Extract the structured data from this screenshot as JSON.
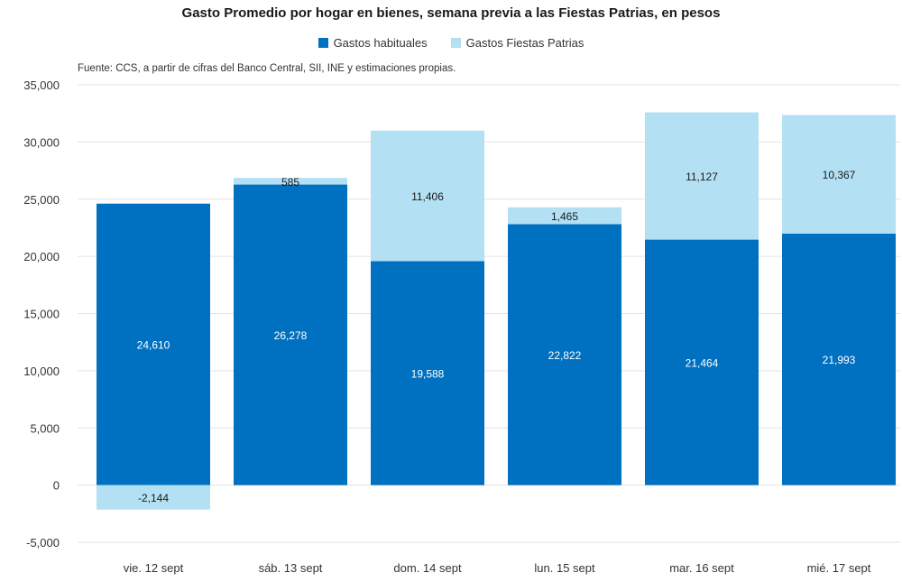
{
  "chart_data": {
    "type": "bar",
    "stacked": true,
    "title": "Gasto Promedio por hogar en bienes, semana previa a las Fiestas Patrias, en pesos",
    "source": "Fuente: CCS, a partir de cifras del Banco Central, SII, INE y estimaciones propias.",
    "categories": [
      "vie. 12 sept",
      "sáb. 13 sept",
      "dom. 14 sept",
      "lun. 15 sept",
      "mar. 16 sept",
      "mié. 17 sept"
    ],
    "series": [
      {
        "name": "Gastos habituales",
        "values": [
          24610,
          26278,
          19588,
          22822,
          21464,
          21993
        ],
        "labels": [
          "24,610",
          "26,278",
          "19,588",
          "22,822",
          "21,464",
          "21,993"
        ]
      },
      {
        "name": "Gastos Fiestas Patrias",
        "values": [
          -2144,
          585,
          11406,
          1465,
          11127,
          10367
        ],
        "labels": [
          "-2,144",
          "585",
          "11,406",
          "1,465",
          "11,127",
          "10,367"
        ]
      }
    ],
    "yticks": [
      "35,000",
      "30,000",
      "25,000",
      "20,000",
      "15,000",
      "10,000",
      "5,000",
      "0",
      "-5,000"
    ],
    "ylim": [
      -5000,
      35000
    ],
    "grid": true,
    "legend_position": "top-center"
  },
  "colors": {
    "habituales": "#0070c0",
    "fiestas": "#b3e1f3",
    "grid": "#e3e3e3"
  }
}
